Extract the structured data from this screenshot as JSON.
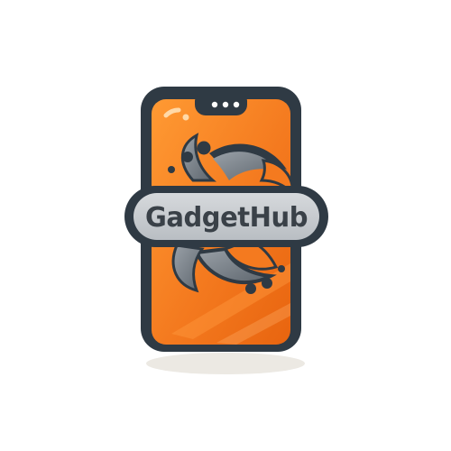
{
  "brand": {
    "name": "GadgetHub"
  },
  "colors": {
    "background": "#ffffff",
    "phone_frame": "#2f3a44",
    "screen_orange": "#f47a1f",
    "screen_orange_light": "#ffa040",
    "swirl_gray": "#7f878f",
    "badge_fill": "#c8ccd0",
    "text_dark": "#3a4148"
  },
  "icons": {
    "logo": "smartphone-swirl-logo"
  }
}
